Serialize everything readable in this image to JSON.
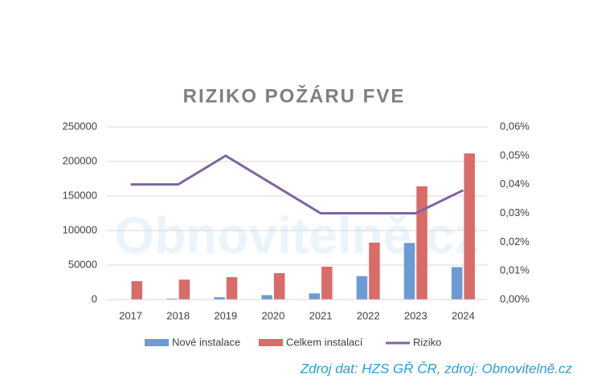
{
  "chart_data": {
    "type": "bar-line",
    "title": "RIZIKO POŽÁRU FVE",
    "watermark": "Obnovitelně.cz",
    "source": "Zdroj dat: HZS GŘ ČR, zdroj: Obnovitelně.cz",
    "categories": [
      "2017",
      "2018",
      "2019",
      "2020",
      "2021",
      "2022",
      "2023",
      "2024"
    ],
    "series": [
      {
        "name": "Nové instalace",
        "color": "#6b9bd2",
        "kind": "bar",
        "values": [
          500,
          1500,
          3500,
          6500,
          9000,
          34000,
          82000,
          47000
        ]
      },
      {
        "name": "Celkem instalací",
        "color": "#d96b68",
        "kind": "bar",
        "values": [
          26700,
          29000,
          32500,
          38400,
          47700,
          82500,
          164000,
          211600
        ]
      },
      {
        "name": "Riziko",
        "color": "#8064a2",
        "kind": "line",
        "axis": "y2",
        "values": [
          0.04,
          0.04,
          0.05,
          0.04,
          0.03,
          0.03,
          0.03,
          0.038
        ]
      }
    ],
    "ylim": [
      0,
      250000
    ],
    "yticks": [
      0,
      50000,
      100000,
      150000,
      200000,
      250000
    ],
    "y2lim": [
      0,
      0.06
    ],
    "y2ticks": [
      {
        "value": 0,
        "label": "0,00%"
      },
      {
        "value": 0.01,
        "label": "0,01%"
      },
      {
        "value": 0.02,
        "label": "0,02%"
      },
      {
        "value": 0.03,
        "label": "0,03%"
      },
      {
        "value": 0.04,
        "label": "0,04%"
      },
      {
        "value": 0.05,
        "label": "0,05%"
      },
      {
        "value": 0.06,
        "label": "0,06%"
      }
    ],
    "grid": true
  }
}
